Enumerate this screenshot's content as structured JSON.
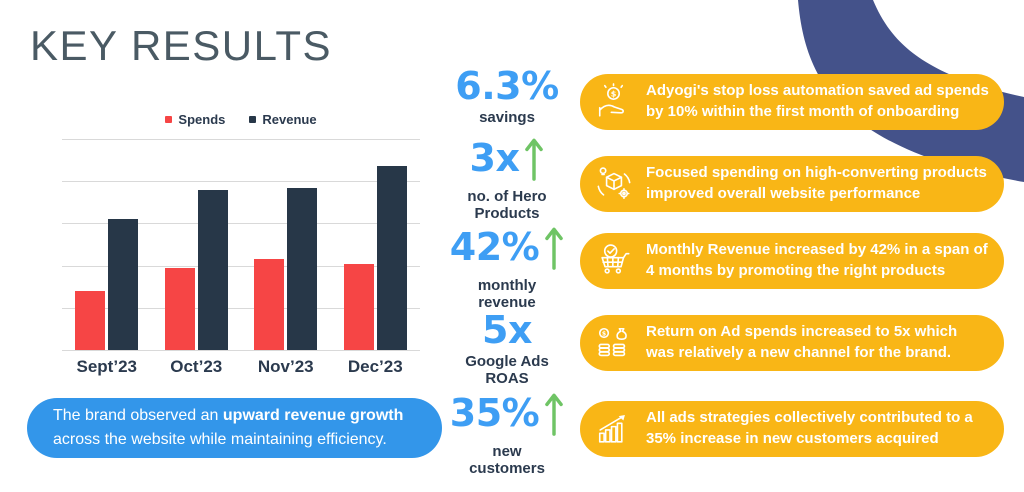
{
  "page": {
    "title": "KEY RESULTS"
  },
  "colors": {
    "title": "#4A5A64",
    "text-dark": "#2B3A4E",
    "stat-blue": "#3E9EF4",
    "arrow-green": "#6FC465",
    "summary-blue": "#3396EA",
    "highlight-yellow": "#F9B616",
    "band-indigo": "#44528A",
    "grid-gray": "#D9D9D9"
  },
  "chart_data": {
    "type": "bar",
    "title": "",
    "categories": [
      "Sept’23",
      "Oct’23",
      "Nov’23",
      "Dec’23"
    ],
    "series": [
      {
        "name": "Spends",
        "color": "#F64545",
        "values": [
          1.4,
          1.95,
          2.15,
          2.05
        ]
      },
      {
        "name": "Revenue",
        "color": "#273748",
        "values": [
          3.1,
          3.8,
          3.85,
          4.35
        ]
      }
    ],
    "xlabel": "",
    "ylabel": "",
    "ylim": [
      0,
      5
    ],
    "gridlines": 5,
    "grid": true,
    "legend_position": "top",
    "y_axis_labels_shown": false
  },
  "summary_box": {
    "line1_regular": "The brand observed an ",
    "line1_bold": "upward revenue growth",
    "line2": "across the website while maintaining efficiency."
  },
  "stats": [
    {
      "value": "6.3%",
      "label_lines": [
        "savings",
        ""
      ],
      "arrow": false
    },
    {
      "value": "3x",
      "label_lines": [
        "no. of Hero",
        "Products"
      ],
      "arrow": true
    },
    {
      "value": "42%",
      "label_lines": [
        "monthly",
        "revenue"
      ],
      "arrow": true
    },
    {
      "value": "5x",
      "label_lines": [
        "Google Ads",
        "ROAS"
      ],
      "arrow": false
    },
    {
      "value": "35%",
      "label_lines": [
        "new",
        "customers"
      ],
      "arrow": true
    }
  ],
  "highlights": [
    {
      "icon": "hand-coin-icon",
      "lines": [
        "Adyogi's stop loss automation saved ad spends",
        "by 10% within the first month of onboarding"
      ]
    },
    {
      "icon": "product-box-icon",
      "lines": [
        "Focused spending on high-converting products",
        "improved overall website performance"
      ]
    },
    {
      "icon": "cart-check-icon",
      "lines": [
        "Monthly Revenue increased by 42% in a span of",
        "4 months by promoting the right products"
      ]
    },
    {
      "icon": "coin-stacks-icon",
      "lines": [
        "Return on Ad spends increased to 5x which",
        "was relatively a new channel for the brand."
      ]
    },
    {
      "icon": "growth-chart-icon",
      "lines": [
        "All ads strategies collectively contributed to a",
        "35% increase in new customers acquired"
      ]
    }
  ]
}
